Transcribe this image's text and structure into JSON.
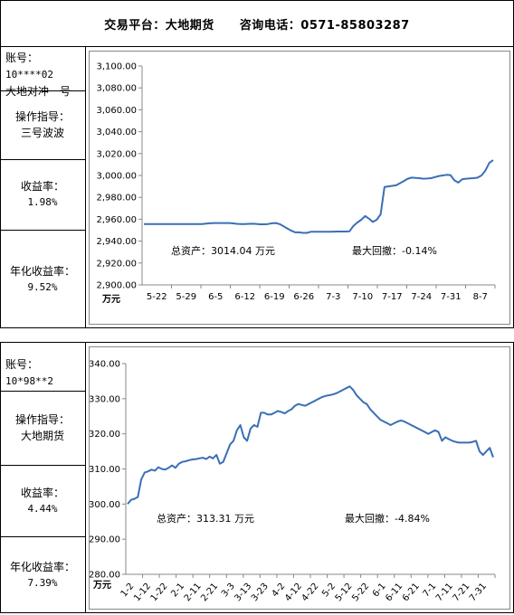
{
  "header": {
    "platform": "交易平台：大地期货",
    "hotline": "咨询电话：0571-85803287"
  },
  "accounts": [
    {
      "account_label": "账号：",
      "account_no": "10****02",
      "account_name": "大地对冲一号",
      "guide_label": "操作指导：",
      "guide_value": "三号波波",
      "return_label": "收益率：",
      "return_value": "1.98%",
      "annual_label": "年化收益率：",
      "annual_value": "9.52%",
      "total_asset": "总资产：3014.04 万元",
      "max_drawdown": "最大回撤：-0.14%"
    },
    {
      "account_label": "账号：",
      "account_no": "10*98**2",
      "account_name": "",
      "guide_label": "操作指导：",
      "guide_value": "大地期货",
      "return_label": "收益率：",
      "return_value": "4.44%",
      "annual_label": "年化收益率：",
      "annual_value": "7.39%",
      "total_asset": "总资产：313.31 万元",
      "max_drawdown": "最大回撤：-4.84%"
    }
  ],
  "chart_data": [
    {
      "type": "line",
      "ylabel": "万元",
      "ylim": [
        2900,
        3100
      ],
      "yticks": [
        "3,100.00",
        "3,080.00",
        "3,060.00",
        "3,040.00",
        "3,020.00",
        "3,000.00",
        "2,980.00",
        "2,960.00",
        "2,940.00",
        "2,920.00",
        "2,900.00"
      ],
      "xticks": [
        "5-22",
        "5-29",
        "6-5",
        "6-12",
        "6-19",
        "6-26",
        "7-3",
        "7-10",
        "7-17",
        "7-24",
        "7-31",
        "8-7"
      ],
      "grid": false,
      "line_color": "#3a6fb5",
      "values": [
        2955.5,
        2955.5,
        2955.5,
        2955.5,
        2955.5,
        2955.5,
        2955.5,
        2955.5,
        2955.5,
        2955.5,
        2955.5,
        2955.5,
        2955.5,
        2955.5,
        2955.5,
        2955.6,
        2956.0,
        2956.3,
        2956.5,
        2956.5,
        2956.5,
        2956.5,
        2956.5,
        2956.2,
        2955.8,
        2955.5,
        2955.5,
        2955.8,
        2955.9,
        2955.7,
        2955.4,
        2955.4,
        2955.6,
        2956.3,
        2956.5,
        2955.5,
        2953.5,
        2951.5,
        2949.5,
        2948.0,
        2948.0,
        2947.5,
        2947.5,
        2948.5,
        2948.5,
        2948.5,
        2948.5,
        2948.5,
        2948.5,
        2948.7,
        2948.8,
        2948.8,
        2948.8,
        2949.0,
        2954.0,
        2957.0,
        2959.5,
        2963.0,
        2960.5,
        2957.5,
        2959.5,
        2964.5,
        2989.5,
        2990.0,
        2990.5,
        2991.0,
        2993.0,
        2995.0,
        2997.0,
        2998.0,
        2997.8,
        2997.5,
        2997.0,
        2997.2,
        2997.5,
        2998.5,
        2999.5,
        3000.0,
        3000.6,
        3000.3,
        2995.5,
        2993.5,
        2996.5,
        2997.0,
        2997.3,
        2997.5,
        2998.0,
        3000.0,
        3004.5,
        3011.5,
        3014.0
      ]
    },
    {
      "type": "line",
      "ylabel": "万元",
      "ylim": [
        280,
        340
      ],
      "yticks": [
        "340.00",
        "330.00",
        "320.00",
        "310.00",
        "300.00",
        "290.00",
        "280.00"
      ],
      "xticks": [
        "1-2",
        "1-12",
        "1-22",
        "2-1",
        "2-11",
        "2-21",
        "3-3",
        "3-13",
        "3-23",
        "4-2",
        "4-12",
        "4-22",
        "5-2",
        "5-12",
        "5-22",
        "6-1",
        "6-11",
        "6-21",
        "7-1",
        "7-11",
        "7-21",
        "7-31"
      ],
      "grid": false,
      "line_color": "#3a6fb5",
      "values": [
        300.0,
        301.2,
        301.5,
        302.0,
        307.0,
        309.0,
        309.3,
        309.8,
        309.5,
        310.5,
        310.0,
        309.8,
        310.3,
        311.0,
        310.3,
        311.5,
        312.0,
        312.2,
        312.5,
        312.7,
        312.8,
        313.0,
        313.2,
        312.8,
        313.5,
        313.0,
        314.0,
        311.5,
        312.0,
        314.5,
        317.0,
        318.0,
        321.0,
        322.5,
        319.0,
        318.0,
        321.5,
        322.5,
        322.0,
        326.0,
        326.0,
        325.5,
        325.5,
        326.0,
        326.5,
        326.2,
        325.8,
        326.5,
        327.0,
        328.0,
        328.5,
        328.2,
        328.0,
        328.5,
        329.0,
        329.5,
        330.0,
        330.5,
        330.8,
        331.0,
        331.2,
        331.5,
        332.0,
        332.5,
        333.0,
        333.5,
        332.5,
        331.0,
        330.0,
        329.0,
        328.5,
        327.0,
        326.0,
        325.0,
        324.0,
        323.5,
        323.0,
        322.5,
        323.0,
        323.5,
        323.8,
        323.5,
        323.0,
        322.5,
        322.0,
        321.5,
        321.0,
        320.5,
        320.0,
        320.5,
        321.0,
        320.5,
        318.0,
        319.0,
        318.5,
        318.0,
        317.7,
        317.5,
        317.5,
        317.5,
        317.5,
        317.7,
        318.0,
        315.0,
        314.0,
        315.0,
        316.0,
        313.31
      ]
    }
  ]
}
